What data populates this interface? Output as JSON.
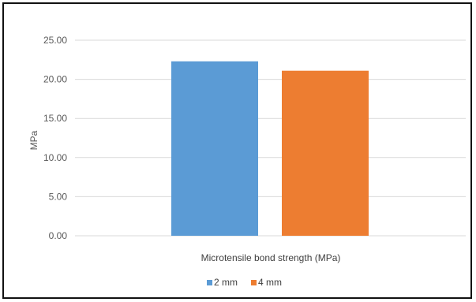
{
  "chart_data": {
    "type": "bar",
    "categories": [
      "Microtensile bond strength (MPa)"
    ],
    "series": [
      {
        "name": "2 mm",
        "values": [
          22.3
        ],
        "color": "#5b9bd5"
      },
      {
        "name": "4 mm",
        "values": [
          21.1
        ],
        "color": "#ed7d31"
      }
    ],
    "title": "",
    "xlabel": "",
    "ylabel": "MPa",
    "ylim": [
      0,
      25
    ],
    "yticks": [
      "0.00",
      "5.00",
      "10.00",
      "15.00",
      "20.00",
      "25.00"
    ],
    "grid": true,
    "legend": "bottom"
  }
}
